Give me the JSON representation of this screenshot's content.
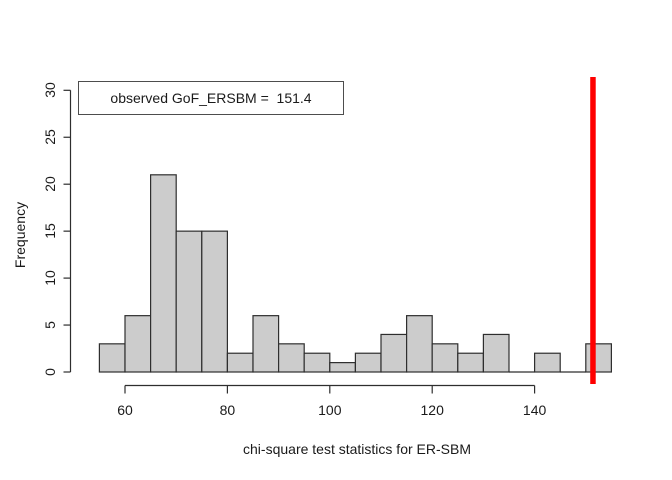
{
  "figure": {
    "background": "#ffffff"
  },
  "chart_data": {
    "type": "bar",
    "subtype": "histogram",
    "title": "",
    "xlabel": "chi-square test statistics for ER-SBM",
    "ylabel": "Frequency",
    "breaks": [
      55,
      60,
      65,
      70,
      75,
      80,
      85,
      90,
      95,
      100,
      105,
      110,
      115,
      120,
      125,
      130,
      135,
      140,
      145,
      150,
      155
    ],
    "counts": [
      3,
      6,
      21,
      15,
      15,
      2,
      6,
      3,
      2,
      1,
      2,
      4,
      6,
      3,
      2,
      4,
      0,
      2,
      0,
      3
    ],
    "x_ticks": [
      60,
      80,
      100,
      120,
      140
    ],
    "y_ticks": [
      0,
      5,
      10,
      15,
      20,
      25,
      30
    ],
    "ylim": [
      0,
      30
    ],
    "grid": false,
    "legend_position": "top-left",
    "legend_label": "observed GoF_ERSBM =  151.4",
    "observed_value": 151.4,
    "colors": {
      "bar_fill": "#cccccc",
      "bar_border": "#2e2e2e",
      "axis": "#2e2e2e",
      "observed_line": "#ff0000",
      "text": "#1a1a1a"
    }
  }
}
